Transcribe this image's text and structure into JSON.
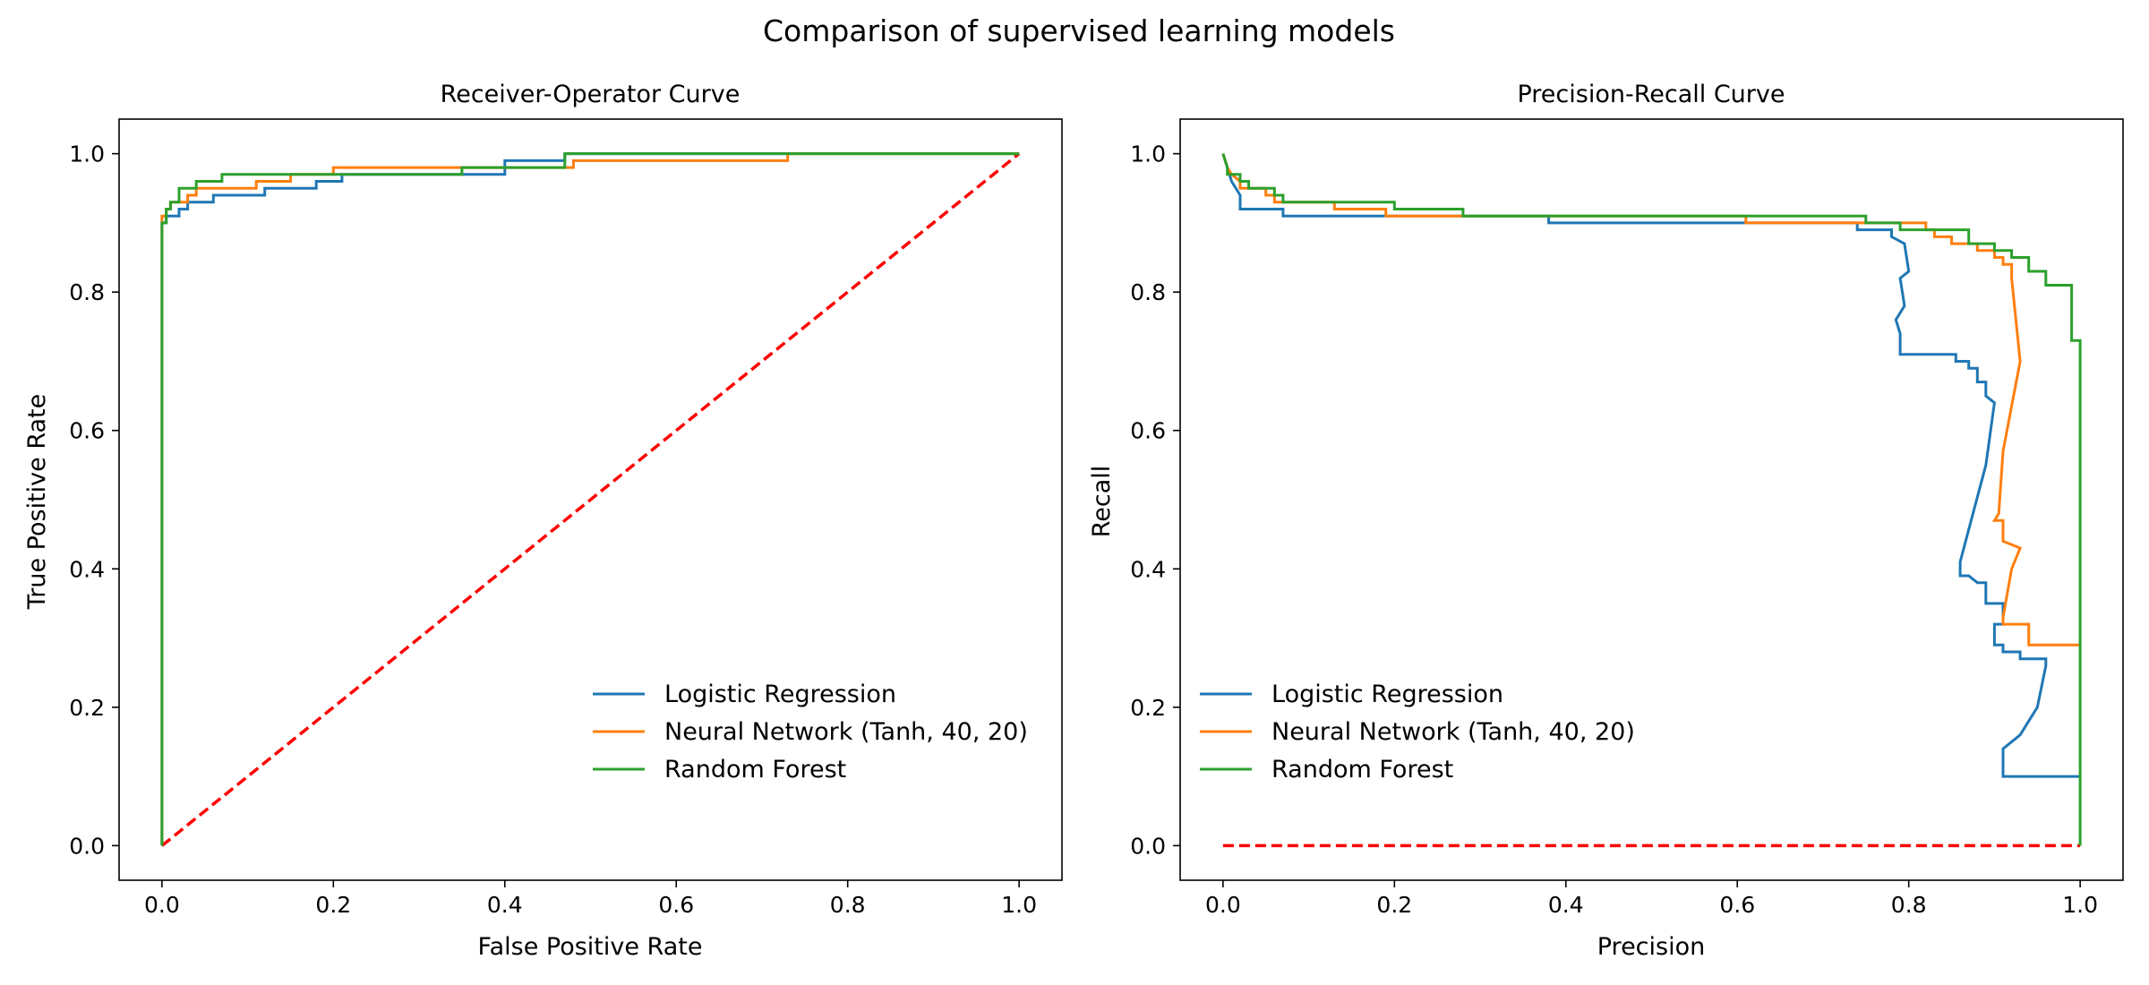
{
  "suptitle": "Comparison of supervised learning models",
  "colors": {
    "logistic": "#1f77b4",
    "neural": "#ff7f0e",
    "forest": "#2ca02c",
    "baseline": "#ff0000"
  },
  "chart_data": [
    {
      "type": "line",
      "title": "Receiver-Operator Curve",
      "xlabel": "False Positive Rate",
      "ylabel": "True Positive Rate",
      "xlim": [
        -0.05,
        1.05
      ],
      "ylim": [
        -0.05,
        1.05
      ],
      "xticks": [
        "0.0",
        "0.2",
        "0.4",
        "0.6",
        "0.8",
        "1.0"
      ],
      "yticks": [
        "0.0",
        "0.2",
        "0.4",
        "0.6",
        "0.8",
        "1.0"
      ],
      "grid": false,
      "legend_position": "lower-right",
      "series": [
        {
          "name": "Logistic Regression",
          "color_key": "logistic",
          "style": "step",
          "x": [
            0,
            0,
            0.005,
            0.005,
            0.02,
            0.02,
            0.03,
            0.03,
            0.06,
            0.06,
            0.12,
            0.12,
            0.18,
            0.18,
            0.21,
            0.21,
            0.4,
            0.4,
            0.47,
            0.47,
            0.7,
            0.7,
            1.0
          ],
          "y": [
            0,
            0.9,
            0.9,
            0.91,
            0.91,
            0.92,
            0.92,
            0.93,
            0.93,
            0.94,
            0.94,
            0.95,
            0.95,
            0.96,
            0.96,
            0.97,
            0.97,
            0.99,
            0.99,
            1.0,
            1.0,
            1.0,
            1.0
          ]
        },
        {
          "name": "Neural Network (Tanh, 40, 20)",
          "color_key": "neural",
          "style": "step",
          "x": [
            0,
            0,
            0.005,
            0.005,
            0.01,
            0.01,
            0.03,
            0.03,
            0.04,
            0.04,
            0.11,
            0.11,
            0.15,
            0.15,
            0.2,
            0.2,
            0.35,
            0.35,
            0.4,
            0.4,
            0.48,
            0.48,
            0.73,
            0.73,
            1.0
          ],
          "y": [
            0,
            0.91,
            0.91,
            0.92,
            0.92,
            0.93,
            0.93,
            0.94,
            0.94,
            0.95,
            0.95,
            0.96,
            0.96,
            0.97,
            0.97,
            0.98,
            0.98,
            0.98,
            0.98,
            0.98,
            0.98,
            0.99,
            0.99,
            1.0,
            1.0
          ]
        },
        {
          "name": "Random Forest",
          "color_key": "forest",
          "style": "step",
          "x": [
            0,
            0,
            0.005,
            0.005,
            0.01,
            0.01,
            0.02,
            0.02,
            0.04,
            0.04,
            0.07,
            0.07,
            0.35,
            0.35,
            0.47,
            0.47,
            1.0
          ],
          "y": [
            0,
            0.9,
            0.9,
            0.92,
            0.92,
            0.93,
            0.93,
            0.95,
            0.95,
            0.96,
            0.96,
            0.97,
            0.97,
            0.98,
            0.98,
            1.0,
            1.0
          ]
        },
        {
          "name": "",
          "color_key": "baseline",
          "style": "dashed",
          "x": [
            0,
            1
          ],
          "y": [
            0,
            1
          ]
        }
      ]
    },
    {
      "type": "line",
      "title": "Precision-Recall Curve",
      "xlabel": "Precision",
      "ylabel": "Recall",
      "xlim": [
        -0.05,
        1.05
      ],
      "ylim": [
        -0.05,
        1.05
      ],
      "xticks": [
        "0.0",
        "0.2",
        "0.4",
        "0.6",
        "0.8",
        "1.0"
      ],
      "yticks": [
        "0.0",
        "0.2",
        "0.4",
        "0.6",
        "0.8",
        "1.0"
      ],
      "grid": false,
      "legend_position": "lower-left",
      "series": [
        {
          "name": "Logistic Regression",
          "color_key": "logistic",
          "style": "line",
          "x": [
            0.0,
            0.005,
            0.01,
            0.02,
            0.02,
            0.07,
            0.07,
            0.38,
            0.38,
            0.61,
            0.61,
            0.74,
            0.74,
            0.78,
            0.78,
            0.795,
            0.8,
            0.79,
            0.795,
            0.785,
            0.79,
            0.79,
            0.855,
            0.855,
            0.87,
            0.87,
            0.88,
            0.88,
            0.89,
            0.89,
            0.9,
            0.89,
            0.86,
            0.86,
            0.87,
            0.88,
            0.89,
            0.89,
            0.91,
            0.91,
            0.9,
            0.9,
            0.91,
            0.91,
            0.93,
            0.93,
            0.96,
            0.96,
            0.95,
            0.93,
            0.91,
            0.91,
            1.0
          ],
          "y": [
            1.0,
            0.98,
            0.96,
            0.94,
            0.92,
            0.92,
            0.91,
            0.91,
            0.9,
            0.9,
            0.9,
            0.9,
            0.89,
            0.89,
            0.88,
            0.87,
            0.83,
            0.82,
            0.78,
            0.76,
            0.74,
            0.71,
            0.71,
            0.7,
            0.7,
            0.69,
            0.69,
            0.67,
            0.67,
            0.65,
            0.64,
            0.55,
            0.41,
            0.39,
            0.39,
            0.38,
            0.38,
            0.35,
            0.35,
            0.32,
            0.32,
            0.29,
            0.29,
            0.28,
            0.28,
            0.27,
            0.27,
            0.26,
            0.2,
            0.16,
            0.14,
            0.1,
            0.1
          ]
        },
        {
          "name": "Neural Network (Tanh, 40, 20)",
          "color_key": "neural",
          "style": "line",
          "x": [
            0.0,
            0.005,
            0.01,
            0.02,
            0.02,
            0.05,
            0.05,
            0.06,
            0.06,
            0.13,
            0.13,
            0.19,
            0.19,
            0.61,
            0.61,
            0.82,
            0.82,
            0.83,
            0.83,
            0.85,
            0.85,
            0.88,
            0.88,
            0.9,
            0.9,
            0.91,
            0.91,
            0.92,
            0.92,
            0.93,
            0.91,
            0.905,
            0.9,
            0.91,
            0.91,
            0.93,
            0.92,
            0.91,
            0.91,
            0.94,
            0.94,
            1.0
          ],
          "y": [
            1.0,
            0.98,
            0.97,
            0.96,
            0.95,
            0.95,
            0.94,
            0.94,
            0.93,
            0.93,
            0.92,
            0.92,
            0.91,
            0.91,
            0.9,
            0.9,
            0.89,
            0.89,
            0.88,
            0.88,
            0.87,
            0.87,
            0.86,
            0.86,
            0.85,
            0.85,
            0.84,
            0.84,
            0.82,
            0.7,
            0.57,
            0.48,
            0.47,
            0.47,
            0.44,
            0.43,
            0.4,
            0.33,
            0.32,
            0.32,
            0.29,
            0.29
          ]
        },
        {
          "name": "Random Forest",
          "color_key": "forest",
          "style": "step",
          "x": [
            0.0,
            0.005,
            0.005,
            0.02,
            0.02,
            0.03,
            0.03,
            0.06,
            0.06,
            0.07,
            0.07,
            0.2,
            0.2,
            0.28,
            0.28,
            0.75,
            0.75,
            0.79,
            0.79,
            0.87,
            0.87,
            0.9,
            0.9,
            0.92,
            0.92,
            0.94,
            0.94,
            0.96,
            0.96,
            0.99,
            0.99,
            1.0,
            1.0
          ],
          "y": [
            1.0,
            0.98,
            0.97,
            0.97,
            0.96,
            0.96,
            0.95,
            0.95,
            0.94,
            0.94,
            0.93,
            0.93,
            0.92,
            0.92,
            0.91,
            0.91,
            0.9,
            0.9,
            0.89,
            0.89,
            0.87,
            0.87,
            0.86,
            0.86,
            0.85,
            0.85,
            0.83,
            0.83,
            0.81,
            0.81,
            0.73,
            0.73,
            0.0
          ]
        },
        {
          "name": "",
          "color_key": "baseline",
          "style": "dashed",
          "x": [
            0,
            1
          ],
          "y": [
            0,
            0
          ]
        }
      ]
    }
  ]
}
